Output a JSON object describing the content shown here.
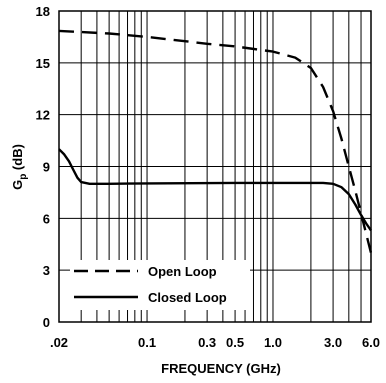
{
  "chart_data": {
    "type": "line",
    "xscale": "log",
    "xlabel": "FREQUENCY (GHz)",
    "ylabel_main": "G",
    "ylabel_sub": "p",
    "ylabel_unit": " (dB)",
    "xlim": [
      0.02,
      6.0
    ],
    "ylim": [
      0,
      18
    ],
    "grid": true,
    "legend_position": "bottom-left",
    "x_ticks": [
      {
        "value": 0.02,
        "label": ".02"
      },
      {
        "value": 0.1,
        "label": "0.1"
      },
      {
        "value": 0.3,
        "label": "0.3"
      },
      {
        "value": 0.5,
        "label": "0.5"
      },
      {
        "value": 1.0,
        "label": "1.0"
      },
      {
        "value": 3.0,
        "label": "3.0"
      },
      {
        "value": 6.0,
        "label": "6.0"
      }
    ],
    "y_ticks": [
      {
        "value": 0,
        "label": "0"
      },
      {
        "value": 3,
        "label": "3"
      },
      {
        "value": 6,
        "label": "6"
      },
      {
        "value": 9,
        "label": "9"
      },
      {
        "value": 12,
        "label": "12"
      },
      {
        "value": 15,
        "label": "15"
      },
      {
        "value": 18,
        "label": "18"
      }
    ],
    "grid_x": [
      0.02,
      0.03,
      0.04,
      0.05,
      0.06,
      0.07,
      0.08,
      0.09,
      0.1,
      0.2,
      0.3,
      0.4,
      0.5,
      0.6,
      0.7,
      0.8,
      0.9,
      1.0,
      2.0,
      3.0,
      4.0,
      5.0,
      6.0
    ],
    "series": [
      {
        "name": "Open Loop",
        "style": "dashed",
        "color": "#000000",
        "x": [
          0.02,
          0.05,
          0.1,
          0.2,
          0.3,
          0.5,
          1.0,
          1.5,
          2.0,
          2.5,
          3.0,
          3.5,
          4.0,
          4.5,
          5.0,
          5.5,
          6.0
        ],
        "y": [
          16.85,
          16.7,
          16.5,
          16.25,
          16.1,
          15.95,
          15.65,
          15.3,
          14.7,
          13.6,
          12.2,
          10.6,
          9.0,
          7.6,
          6.3,
          5.1,
          4.0
        ]
      },
      {
        "name": "Closed Loop",
        "style": "solid",
        "color": "#000000",
        "x": [
          0.02,
          0.022,
          0.024,
          0.026,
          0.028,
          0.03,
          0.035,
          0.05,
          0.1,
          0.5,
          1.0,
          2.0,
          2.5,
          3.0,
          3.5,
          4.0,
          4.5,
          5.0,
          5.5,
          6.0
        ],
        "y": [
          10.0,
          9.7,
          9.3,
          8.8,
          8.35,
          8.1,
          8.0,
          8.0,
          8.02,
          8.05,
          8.05,
          8.05,
          8.05,
          8.0,
          7.8,
          7.4,
          6.8,
          6.2,
          5.7,
          5.3
        ]
      }
    ]
  }
}
